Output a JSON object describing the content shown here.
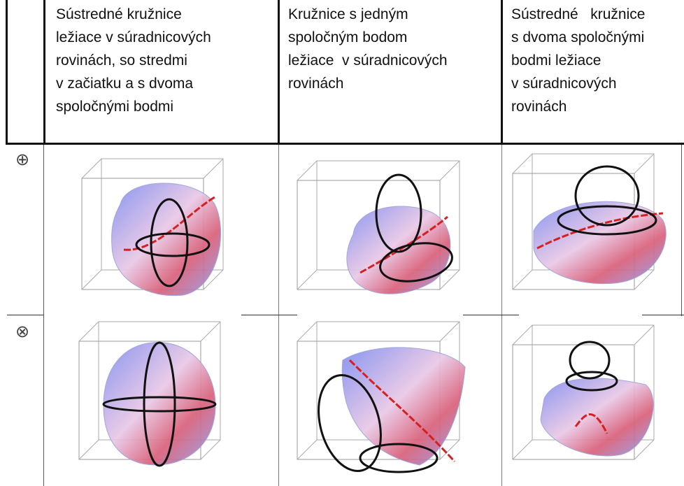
{
  "table": {
    "header": [
      [
        "Sústredné kružnice",
        "ležiace v súradnicových",
        "rovinách, so stredmi",
        "v začiatku a s dvoma",
        "spoločnými bodmi"
      ],
      [
        "Kružnice s jedným",
        "spoločným bodom",
        "ležiace  v súradnicových",
        "rovinách"
      ],
      [
        "Sústredné   kružnice",
        "s dvoma spoločnými",
        "bodmi ležiace",
        "v súradnicových",
        "rovinách"
      ]
    ],
    "rows": [
      {
        "symbol": "⊕"
      },
      {
        "symbol": "⊗"
      }
    ]
  }
}
